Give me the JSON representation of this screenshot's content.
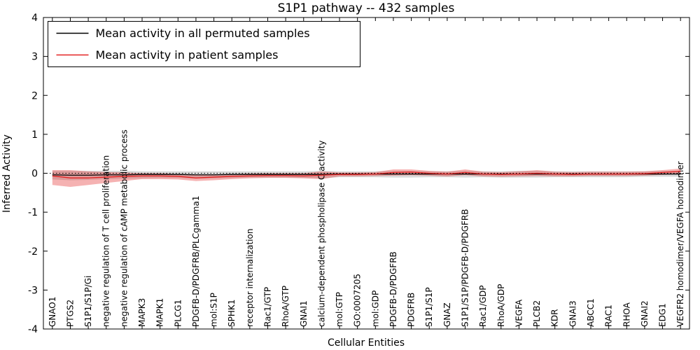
{
  "chart_data": {
    "type": "line",
    "title": "S1P1 pathway -- 432 samples",
    "xlabel": "Cellular Entities",
    "ylabel": "Inferred Activity",
    "ylim": [
      -4,
      4
    ],
    "yticks": [
      -4,
      -3,
      -2,
      -1,
      0,
      1,
      2,
      3,
      4
    ],
    "grid": false,
    "legend_position": "upper left",
    "zero_line": {
      "style": "dotted",
      "color": "#000000"
    },
    "categories": [
      "GNAO1",
      "PTGS2",
      "S1P1/S1P/Gi",
      "negative regulation of T cell proliferation",
      "negative regulation of cAMP metabolic process",
      "MAPK3",
      "MAPK1",
      "PLCG1",
      "PDGFB-D/PDGFRB/PLCgamma1",
      "mol:S1P",
      "SPHK1",
      "receptor internalization",
      "Rac1/GTP",
      "RhoA/GTP",
      "GNAI1",
      "calcium-dependent phospholipase C activity",
      "mol:GTP",
      "GO:0007205",
      "mol:GDP",
      "PDGFB-D/PDGFRB",
      "PDGFRB",
      "S1P1/S1P",
      "GNAZ",
      "S1P1/S1P/PDGFB-D/PDGFRB",
      "Rac1/GDP",
      "RhoA/GDP",
      "VEGFA",
      "PLCB2",
      "KDR",
      "GNAI3",
      "ABCC1",
      "RAC1",
      "RHOA",
      "GNAI2",
      "EDG1",
      "VEGFR2 homodimer/VEGFA homodimer"
    ],
    "series": [
      {
        "id": "permuted",
        "name": "Mean activity in all permuted samples",
        "color": "#000000",
        "values": [
          -0.04,
          -0.05,
          -0.05,
          -0.04,
          -0.04,
          -0.03,
          -0.03,
          -0.03,
          -0.04,
          -0.04,
          -0.03,
          -0.03,
          -0.03,
          -0.03,
          -0.03,
          -0.03,
          -0.02,
          -0.02,
          -0.02,
          -0.02,
          -0.02,
          -0.02,
          -0.02,
          -0.02,
          -0.02,
          -0.02,
          -0.02,
          -0.02,
          -0.02,
          -0.02,
          -0.02,
          -0.02,
          -0.02,
          -0.02,
          -0.02,
          -0.02
        ],
        "band": {
          "upper": [
            0.06,
            0.06,
            0.06,
            0.06,
            0.06,
            0.05,
            0.05,
            0.05,
            0.05,
            0.05,
            0.05,
            0.05,
            0.05,
            0.05,
            0.05,
            0.06,
            0.05,
            0.05,
            0.05,
            0.06,
            0.06,
            0.05,
            0.05,
            0.06,
            0.05,
            0.05,
            0.06,
            0.06,
            0.05,
            0.05,
            0.05,
            0.05,
            0.05,
            0.05,
            0.06,
            0.06
          ],
          "lower": [
            -0.16,
            -0.18,
            -0.17,
            -0.15,
            -0.14,
            -0.13,
            -0.12,
            -0.12,
            -0.14,
            -0.13,
            -0.12,
            -0.11,
            -0.11,
            -0.11,
            -0.12,
            -0.13,
            -0.1,
            -0.1,
            -0.1,
            -0.11,
            -0.11,
            -0.1,
            -0.1,
            -0.11,
            -0.1,
            -0.11,
            -0.11,
            -0.11,
            -0.1,
            -0.1,
            -0.1,
            -0.1,
            -0.1,
            -0.09,
            -0.09,
            -0.09
          ],
          "color": "#aaaaaa",
          "opacity": 0.45
        }
      },
      {
        "id": "patient",
        "name": "Mean activity in patient samples",
        "color": "#e32222",
        "values": [
          -0.07,
          -0.12,
          -0.12,
          -0.1,
          -0.08,
          -0.07,
          -0.07,
          -0.08,
          -0.12,
          -0.1,
          -0.08,
          -0.07,
          -0.06,
          -0.06,
          -0.07,
          -0.05,
          -0.03,
          -0.03,
          -0.02,
          0.02,
          0.03,
          0.0,
          -0.02,
          0.02,
          -0.02,
          -0.03,
          -0.02,
          0.0,
          -0.02,
          -0.03,
          -0.02,
          -0.02,
          -0.02,
          -0.01,
          0.02,
          0.05
        ],
        "band": {
          "upper": [
            0.08,
            0.08,
            0.05,
            0.03,
            0.02,
            0.0,
            0.0,
            -0.02,
            -0.05,
            -0.03,
            -0.02,
            -0.01,
            0.0,
            0.0,
            0.0,
            0.05,
            0.02,
            0.02,
            0.03,
            0.1,
            0.1,
            0.06,
            0.04,
            0.1,
            0.04,
            0.03,
            0.05,
            0.08,
            0.04,
            0.03,
            0.04,
            0.04,
            0.04,
            0.05,
            0.08,
            0.12
          ],
          "lower": [
            -0.3,
            -0.35,
            -0.3,
            -0.25,
            -0.2,
            -0.15,
            -0.15,
            -0.16,
            -0.2,
            -0.18,
            -0.15,
            -0.13,
            -0.12,
            -0.12,
            -0.13,
            -0.15,
            -0.08,
            -0.08,
            -0.07,
            -0.06,
            -0.05,
            -0.06,
            -0.08,
            -0.05,
            -0.08,
            -0.09,
            -0.08,
            -0.07,
            -0.08,
            -0.08,
            -0.07,
            -0.07,
            -0.07,
            -0.06,
            -0.04,
            -0.02
          ],
          "color": "#e32222",
          "opacity": 0.35
        }
      }
    ]
  }
}
